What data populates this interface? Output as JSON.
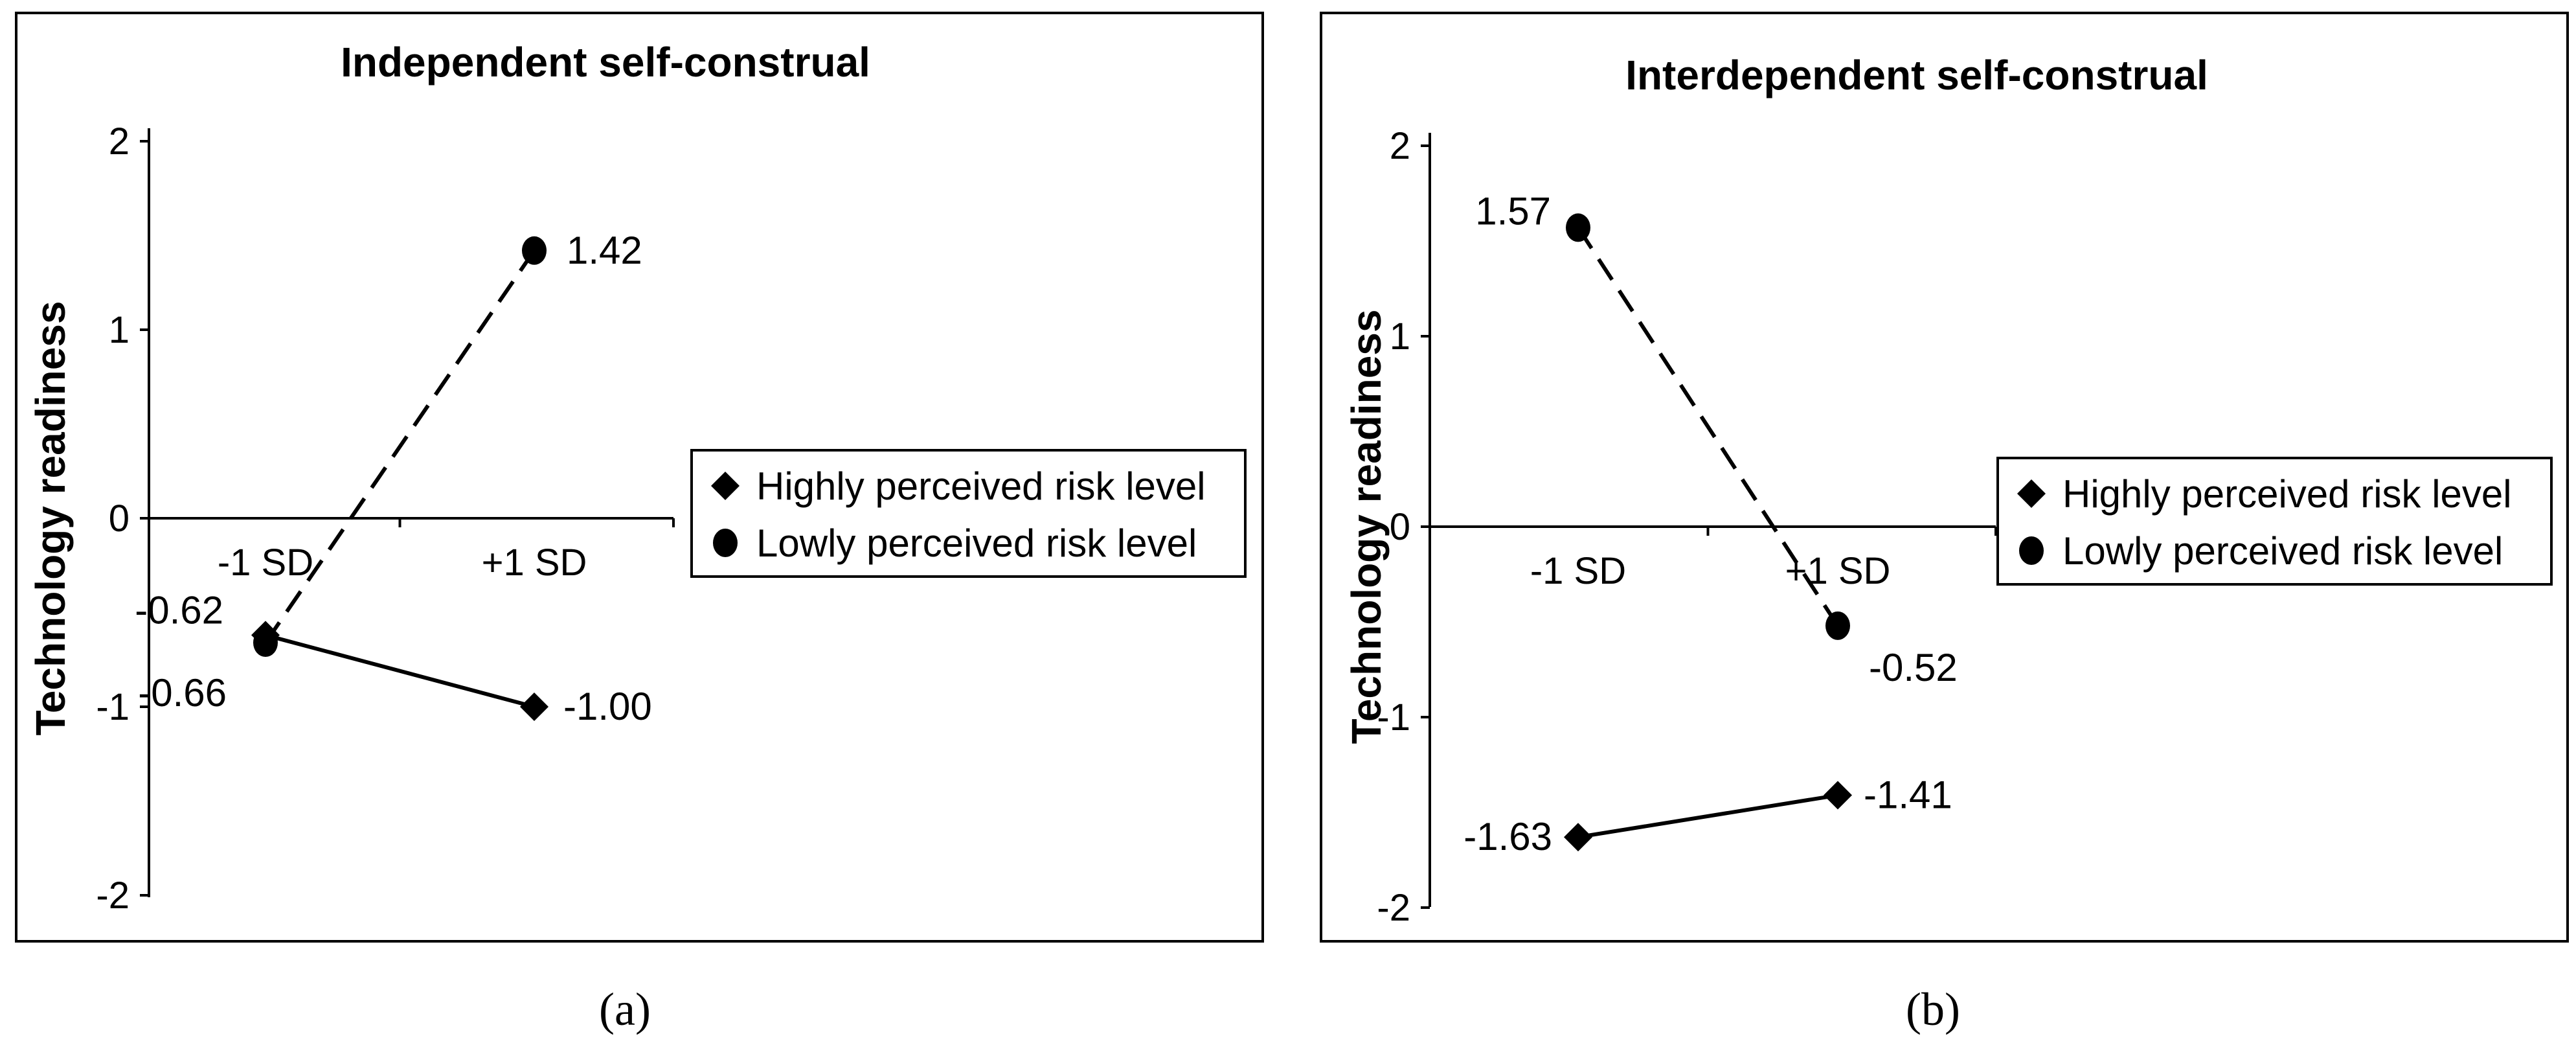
{
  "chart_data": [
    {
      "type": "line",
      "panel_label": "a",
      "title": "Independent self-construal",
      "ylabel": "Technology readiness",
      "xlabel": "",
      "categories": [
        "-1 SD",
        "+1 SD"
      ],
      "ylim": [
        -2,
        2
      ],
      "yticks": [
        "-2",
        "-1",
        "0",
        "1",
        "2"
      ],
      "series": [
        {
          "name": "Highly perceived risk level",
          "marker": "diamond",
          "linestyle": "solid",
          "values": [
            -0.62,
            -1.0
          ],
          "labels": [
            "-0.62",
            "-1.00"
          ]
        },
        {
          "name": "Lowly perceived risk level",
          "marker": "circle",
          "linestyle": "dashed",
          "values": [
            -0.66,
            1.42
          ],
          "labels": [
            "-0.66",
            "1.42"
          ]
        }
      ],
      "legend": "right"
    },
    {
      "type": "line",
      "panel_label": "b",
      "title": "Interdependent self-construal",
      "ylabel": "Technology readiness",
      "xlabel": "",
      "categories": [
        "-1 SD",
        "+1 SD"
      ],
      "ylim": [
        -2,
        2
      ],
      "yticks": [
        "-2",
        "-1",
        "0",
        "1",
        "2"
      ],
      "series": [
        {
          "name": "Highly perceived risk level",
          "marker": "diamond",
          "linestyle": "solid",
          "values": [
            -1.63,
            -1.41
          ],
          "labels": [
            "-1.63",
            "-1.41"
          ]
        },
        {
          "name": "Lowly perceived risk level",
          "marker": "circle",
          "linestyle": "dashed",
          "values": [
            1.57,
            -0.52
          ],
          "labels": [
            "1.57",
            "-0.52"
          ]
        }
      ],
      "legend": "right"
    }
  ],
  "captions": [
    "(a)",
    "(b)"
  ]
}
